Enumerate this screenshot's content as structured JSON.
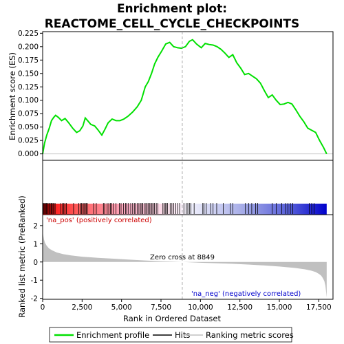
{
  "chart_data": {
    "type": "line",
    "title_line1": "Enrichment plot:",
    "title_line2": "REACTOME_CELL_CYCLE_CHECKPOINTS",
    "es_panel": {
      "ylabel": "Enrichment score (ES)",
      "ylim": [
        -0.012,
        0.228
      ],
      "yticks": [
        0.0,
        0.025,
        0.05,
        0.075,
        0.1,
        0.125,
        0.15,
        0.175,
        0.2,
        0.225
      ],
      "ytick_labels": [
        "0.000",
        "0.025",
        "0.050",
        "0.075",
        "0.100",
        "0.125",
        "0.150",
        "0.175",
        "0.200",
        "0.225"
      ],
      "line_color": "#00e000",
      "x": [
        0,
        120,
        260,
        420,
        560,
        700,
        820,
        1000,
        1200,
        1420,
        1650,
        1900,
        2150,
        2350,
        2550,
        2700,
        2850,
        3050,
        3300,
        3500,
        3750,
        3950,
        4150,
        4400,
        4650,
        4900,
        5150,
        5400,
        5700,
        6000,
        6250,
        6500,
        6700,
        6900,
        7100,
        7300,
        7550,
        7800,
        8050,
        8300,
        8550,
        8800,
        9050,
        9300,
        9500,
        9750,
        10050,
        10300,
        10550,
        10800,
        11050,
        11300,
        11550,
        11800,
        12050,
        12300,
        12550,
        12800,
        13050,
        13300,
        13550,
        13800,
        14050,
        14300,
        14550,
        14800,
        15050,
        15300,
        15550,
        15800,
        16050,
        16300,
        16550,
        16800,
        17050,
        17300,
        17550,
        17800,
        18000
      ],
      "y": [
        0.0,
        0.02,
        0.035,
        0.048,
        0.062,
        0.068,
        0.072,
        0.068,
        0.062,
        0.066,
        0.058,
        0.048,
        0.04,
        0.043,
        0.052,
        0.067,
        0.062,
        0.055,
        0.052,
        0.045,
        0.035,
        0.046,
        0.058,
        0.065,
        0.062,
        0.062,
        0.065,
        0.07,
        0.078,
        0.088,
        0.1,
        0.125,
        0.135,
        0.15,
        0.168,
        0.18,
        0.192,
        0.205,
        0.208,
        0.2,
        0.198,
        0.197,
        0.2,
        0.21,
        0.213,
        0.205,
        0.198,
        0.206,
        0.204,
        0.203,
        0.2,
        0.195,
        0.188,
        0.18,
        0.185,
        0.17,
        0.16,
        0.148,
        0.15,
        0.145,
        0.14,
        0.132,
        0.118,
        0.105,
        0.11,
        0.1,
        0.092,
        0.093,
        0.096,
        0.093,
        0.082,
        0.07,
        0.06,
        0.048,
        0.044,
        0.04,
        0.025,
        0.012,
        0.0
      ]
    },
    "hits": [
      30,
      80,
      130,
      190,
      240,
      300,
      350,
      420,
      480,
      540,
      600,
      660,
      720,
      790,
      1150,
      1260,
      1340,
      1420,
      1500,
      1960,
      2290,
      2380,
      2470,
      2560,
      2620,
      2700,
      2760,
      2830,
      3230,
      3400,
      3850,
      3930,
      4090,
      4190,
      4290,
      4380,
      4470,
      4650,
      4860,
      4970,
      5130,
      5260,
      5330,
      5440,
      5580,
      5700,
      5810,
      5890,
      6000,
      6100,
      6200,
      6280,
      6340,
      6430,
      6540,
      6620,
      6700,
      6790,
      6860,
      6930,
      7010,
      7090,
      7200,
      7300,
      7620,
      7700,
      7770,
      7840,
      7920,
      8080,
      8190,
      8300,
      8440,
      8570,
      8680,
      8950,
      9100,
      9200,
      9300,
      9400,
      9600,
      10150,
      10230,
      10370,
      10650,
      10800,
      11030,
      11450,
      11900,
      12050,
      12850,
      13050,
      13250,
      13500,
      13620,
      14550,
      14800,
      15150,
      15400,
      15550,
      15700,
      15850,
      16900,
      17050,
      17200
    ],
    "rank_panel": {
      "ylabel": "Ranked list metric (PreRanked)",
      "ylim": [
        -2.05,
        2.6
      ],
      "yticks": [
        -2,
        -1,
        0,
        1,
        2
      ],
      "ytick_labels": [
        "-2",
        "-1",
        "0",
        "1",
        "2"
      ],
      "x": [
        0,
        30,
        80,
        150,
        250,
        400,
        600,
        900,
        1300,
        1800,
        2500,
        3500,
        4500,
        5500,
        6500,
        7500,
        8849,
        10000,
        11000,
        12000,
        13000,
        14000,
        15000,
        16000,
        16600,
        17000,
        17300,
        17500,
        17650,
        17750,
        17850,
        17920,
        17970,
        18000
      ],
      "y": [
        1.75,
        1.5,
        1.25,
        1.05,
        0.9,
        0.75,
        0.64,
        0.52,
        0.43,
        0.36,
        0.29,
        0.23,
        0.18,
        0.13,
        0.08,
        0.04,
        0.0,
        -0.04,
        -0.07,
        -0.1,
        -0.14,
        -0.19,
        -0.25,
        -0.33,
        -0.4,
        -0.47,
        -0.55,
        -0.65,
        -0.75,
        -0.88,
        -1.05,
        -1.3,
        -1.7,
        -1.95
      ]
    },
    "xlabel": "Rank in Ordered Dataset",
    "xlim": [
      0,
      18400
    ],
    "xticks": [
      0,
      2500,
      5000,
      7500,
      10000,
      12500,
      15000,
      17500
    ],
    "xtick_labels": [
      "0",
      "2,500",
      "5,000",
      "7,500",
      "10,000",
      "12,500",
      "15,000",
      "17,500"
    ],
    "n_genes": 18000,
    "zero_cross": 8849,
    "zero_cross_label": "Zero cross at 8849",
    "pos_label": "'na_pos' (positively correlated)",
    "neg_label": "'na_neg' (negatively correlated)",
    "colors": {
      "enrichment": "#00e000",
      "pos_text": "#cc0000",
      "neg_text": "#0000cc",
      "metric_fill": "#c0c0c0",
      "heat_red": "#ff0000",
      "heat_white": "#ffffff",
      "heat_blue": "#0000cc"
    },
    "legend": [
      {
        "label": "Enrichment profile",
        "kind": "green-line"
      },
      {
        "label": "Hits",
        "kind": "black-line"
      },
      {
        "label": "Ranking metric scores",
        "kind": "gray-line"
      }
    ],
    "legend_placement": "bottom"
  }
}
